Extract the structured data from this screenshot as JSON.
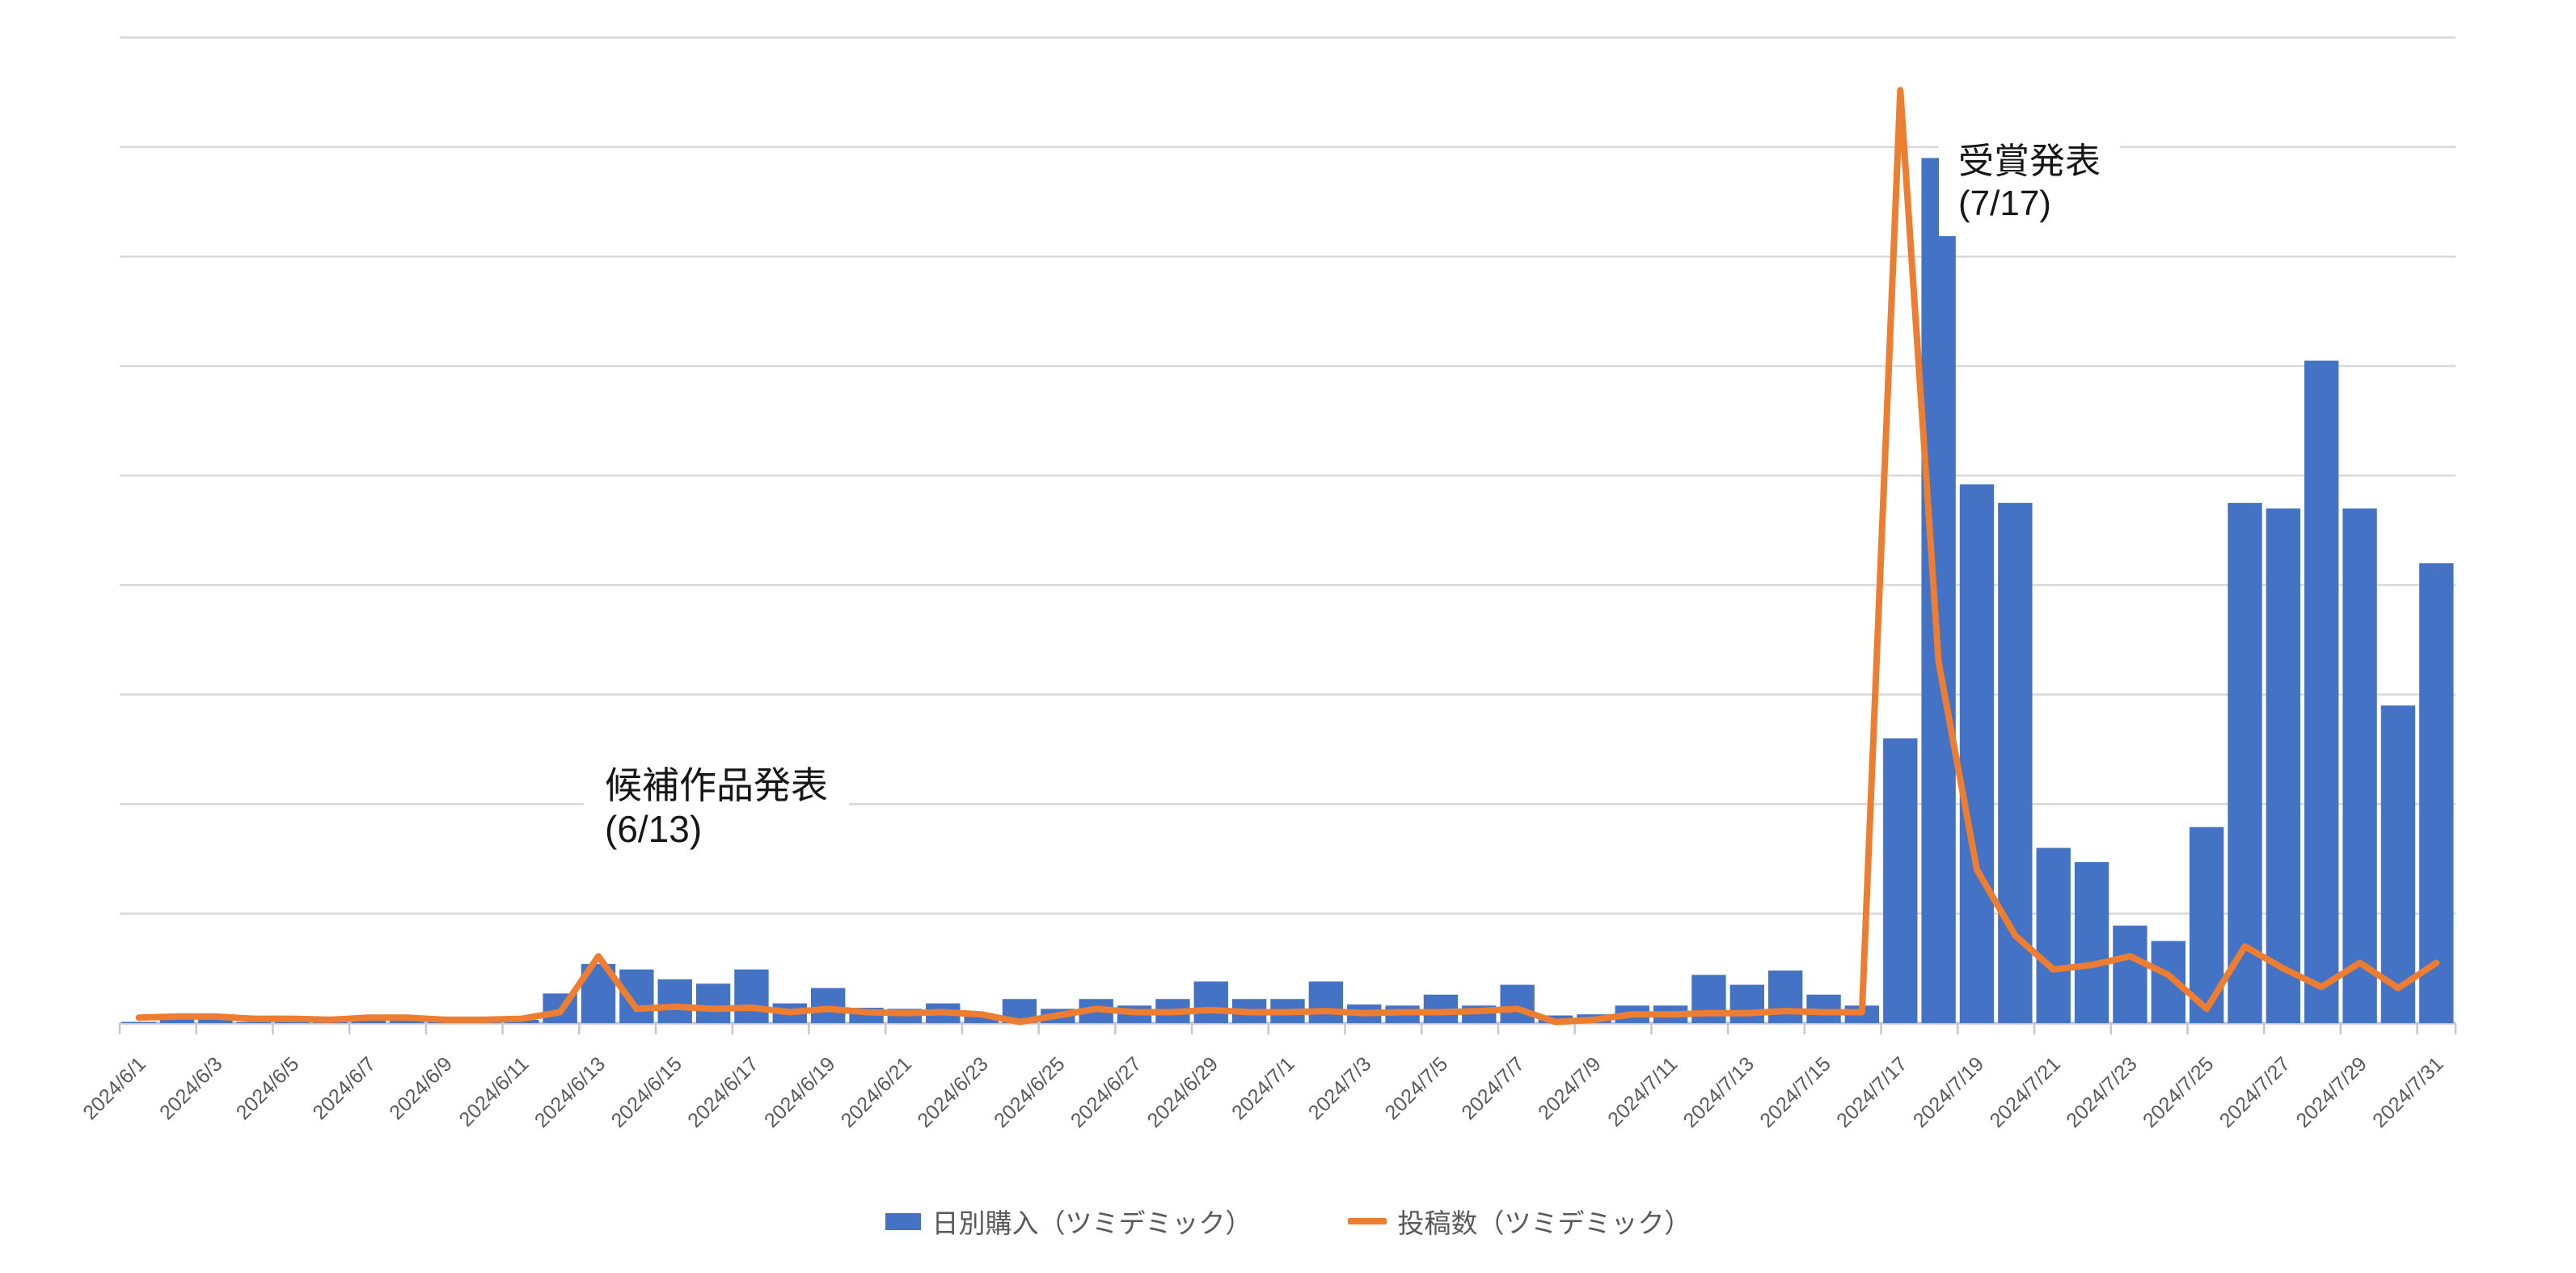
{
  "chart_data": {
    "type": "bar",
    "combo": "bar+line",
    "title": "",
    "xlabel": "",
    "ylabel": "",
    "ylim": [
      0,
      9
    ],
    "y_gridline_step": 1,
    "y_axis_labels_visible": false,
    "grid": true,
    "legend_position": "bottom-center",
    "categories": [
      "2024/6/1",
      "2024/6/2",
      "2024/6/3",
      "2024/6/4",
      "2024/6/5",
      "2024/6/6",
      "2024/6/7",
      "2024/6/8",
      "2024/6/9",
      "2024/6/10",
      "2024/6/11",
      "2024/6/12",
      "2024/6/13",
      "2024/6/14",
      "2024/6/15",
      "2024/6/16",
      "2024/6/17",
      "2024/6/18",
      "2024/6/19",
      "2024/6/20",
      "2024/6/21",
      "2024/6/22",
      "2024/6/23",
      "2024/6/24",
      "2024/6/25",
      "2024/6/26",
      "2024/6/27",
      "2024/6/28",
      "2024/6/29",
      "2024/6/30",
      "2024/7/1",
      "2024/7/2",
      "2024/7/3",
      "2024/7/4",
      "2024/7/5",
      "2024/7/6",
      "2024/7/7",
      "2024/7/8",
      "2024/7/9",
      "2024/7/10",
      "2024/7/11",
      "2024/7/12",
      "2024/7/13",
      "2024/7/14",
      "2024/7/15",
      "2024/7/16",
      "2024/7/17",
      "2024/7/18",
      "2024/7/19",
      "2024/7/20",
      "2024/7/21",
      "2024/7/22",
      "2024/7/23",
      "2024/7/24",
      "2024/7/25",
      "2024/7/26",
      "2024/7/27",
      "2024/7/28",
      "2024/7/29",
      "2024/7/30",
      "2024/7/31"
    ],
    "x_tick_labels": [
      "2024/6/1",
      "2024/6/3",
      "2024/6/5",
      "2024/6/7",
      "2024/6/9",
      "2024/6/11",
      "2024/6/13",
      "2024/6/15",
      "2024/6/17",
      "2024/6/19",
      "2024/6/21",
      "2024/6/23",
      "2024/6/25",
      "2024/6/27",
      "2024/6/29",
      "2024/7/1",
      "2024/7/3",
      "2024/7/5",
      "2024/7/7",
      "2024/7/9",
      "2024/7/11",
      "2024/7/13",
      "2024/7/15",
      "2024/7/17",
      "2024/7/19",
      "2024/7/21",
      "2024/7/23",
      "2024/7/25",
      "2024/7/27",
      "2024/7/29",
      "2024/7/31"
    ],
    "series": [
      {
        "name": "日別購入（ツミデミック）",
        "type": "bar",
        "color": "#4472C4",
        "values": [
          0.01,
          0.04,
          0.08,
          0.01,
          0.01,
          0.01,
          0.06,
          0.05,
          0.01,
          0.01,
          0.03,
          0.27,
          0.54,
          0.49,
          0.4,
          0.36,
          0.49,
          0.18,
          0.32,
          0.14,
          0.13,
          0.18,
          0.07,
          0.22,
          0.13,
          0.22,
          0.16,
          0.22,
          0.38,
          0.22,
          0.22,
          0.38,
          0.17,
          0.16,
          0.26,
          0.16,
          0.35,
          0.07,
          0.08,
          0.16,
          0.16,
          0.44,
          0.35,
          0.48,
          0.26,
          0.16,
          2.6,
          7.9,
          4.92,
          4.75,
          1.6,
          1.47,
          0.89,
          0.75,
          1.79,
          4.75,
          4.7,
          6.05,
          4.7,
          2.9,
          4.2
        ]
      },
      {
        "name": "投稿数（ツミデミック）",
        "type": "line",
        "color": "#ED7D31",
        "values": [
          0.05,
          0.06,
          0.06,
          0.04,
          0.04,
          0.03,
          0.05,
          0.05,
          0.03,
          0.03,
          0.04,
          0.1,
          0.61,
          0.13,
          0.15,
          0.13,
          0.14,
          0.1,
          0.13,
          0.1,
          0.09,
          0.1,
          0.08,
          0.01,
          0.07,
          0.13,
          0.1,
          0.1,
          0.12,
          0.1,
          0.1,
          0.11,
          0.09,
          0.1,
          0.1,
          0.11,
          0.13,
          0.01,
          0.03,
          0.08,
          0.08,
          0.09,
          0.09,
          0.11,
          0.1,
          0.1,
          8.52,
          3.3,
          1.4,
          0.8,
          0.49,
          0.53,
          0.61,
          0.44,
          0.13,
          0.7,
          0.5,
          0.33,
          0.55,
          0.32,
          0.55
        ]
      }
    ],
    "annotations": [
      {
        "line1": "候補作品発表",
        "line2": "(6/13)",
        "anchor_date": "2024/6/13"
      },
      {
        "line1": "受賞発表",
        "line2": "(7/17)",
        "anchor_date": "2024/7/17"
      }
    ]
  },
  "colors": {
    "bar": "#4472C4",
    "line": "#ED7D31",
    "gridline": "#D9D9D9",
    "axis": "#C8C6C6",
    "tick": "#C8C6C6",
    "axis_label": "#595959",
    "annotation_text": "#161616",
    "background": "#FFFFFF"
  },
  "legend": {
    "items": [
      {
        "label": "日別購入（ツミデミック）",
        "swatch": "bar"
      },
      {
        "label": "投稿数（ツミデミック）",
        "swatch": "line"
      }
    ]
  },
  "annotations": {
    "a1_line1": "候補作品発表",
    "a1_line2": "(6/13)",
    "a2_line1": "受賞発表",
    "a2_line2": "(7/17)"
  }
}
